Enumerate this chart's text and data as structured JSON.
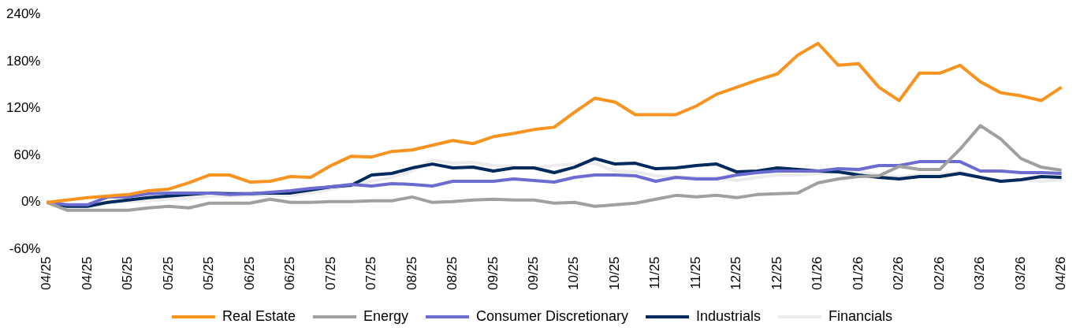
{
  "chart_data": {
    "type": "line",
    "categories": [
      "04/25",
      null,
      "04/25",
      null,
      "05/25",
      null,
      "05/25",
      null,
      "05/25",
      null,
      "06/25",
      null,
      "06/25",
      null,
      "07/25",
      null,
      "07/25",
      null,
      "08/25",
      null,
      "08/25",
      null,
      "09/25",
      null,
      "09/25",
      null,
      "10/25",
      null,
      "10/25",
      null,
      "11/25",
      null,
      "11/25",
      null,
      "12/25",
      null,
      "12/25",
      null,
      "01/26",
      null,
      "01/26",
      null,
      "02/26",
      null,
      "02/26",
      null,
      "03/26",
      null,
      "03/26",
      null,
      "04/26"
    ],
    "series": [
      {
        "name": "Real Estate",
        "color": "#f7931e",
        "values": [
          0,
          3,
          6,
          8,
          10,
          15,
          17,
          25,
          35,
          35,
          26,
          27,
          33,
          32,
          47,
          59,
          58,
          65,
          67,
          73,
          79,
          75,
          84,
          88,
          93,
          96,
          115,
          133,
          128,
          112,
          112,
          112,
          123,
          138,
          147,
          156,
          164,
          188,
          203,
          175,
          177,
          147,
          130,
          165,
          165,
          175,
          154,
          140,
          136,
          130,
          147
        ]
      },
      {
        "name": "Energy",
        "color": "#a0a0a0",
        "values": [
          0,
          -10,
          -10,
          -10,
          -10,
          -7,
          -5,
          -7,
          -1,
          -1,
          -1,
          4,
          0,
          0,
          1,
          1,
          2,
          2,
          7,
          0,
          1,
          3,
          4,
          3,
          3,
          -1,
          0,
          -5,
          -3,
          -1,
          4,
          9,
          7,
          9,
          6,
          10,
          11,
          12,
          25,
          30,
          33,
          34,
          46,
          42,
          42,
          68,
          98,
          81,
          56,
          45,
          41
        ]
      },
      {
        "name": "Consumer Discretionary",
        "color": "#6b6bd0",
        "values": [
          0,
          -3,
          -3,
          7,
          7,
          11,
          12,
          12,
          12,
          10,
          11,
          13,
          15,
          18,
          20,
          23,
          21,
          24,
          23,
          21,
          27,
          27,
          27,
          30,
          28,
          26,
          32,
          35,
          35,
          34,
          27,
          32,
          30,
          30,
          35,
          38,
          40,
          40,
          40,
          43,
          42,
          47,
          47,
          52,
          52,
          52,
          40,
          40,
          38,
          38,
          37
        ]
      },
      {
        "name": "Industrials",
        "color": "#002a5c",
        "values": [
          0,
          -5,
          -5,
          0,
          3,
          6,
          8,
          10,
          12,
          11,
          11,
          12,
          12,
          16,
          20,
          22,
          35,
          37,
          44,
          49,
          44,
          45,
          40,
          44,
          44,
          38,
          45,
          56,
          49,
          50,
          43,
          44,
          47,
          49,
          39,
          40,
          44,
          42,
          40,
          39,
          35,
          32,
          30,
          33,
          33,
          37,
          32,
          27,
          29,
          33,
          32
        ]
      },
      {
        "name": "Financials",
        "color": "#ececec",
        "values": [
          0,
          -5,
          -3,
          0,
          1,
          2,
          4,
          5,
          8,
          8,
          9,
          9,
          9,
          12,
          17,
          22,
          27,
          32,
          40,
          54,
          50,
          51,
          47,
          46,
          44,
          47,
          49,
          50,
          40,
          39,
          34,
          32,
          32,
          32,
          28,
          32,
          35,
          35,
          37,
          39,
          40,
          35,
          33,
          35,
          36,
          39,
          32,
          27,
          29,
          27,
          29
        ]
      }
    ],
    "ylim": [
      -60,
      240
    ],
    "yticks": [
      {
        "value": -60,
        "label": "-60%"
      },
      {
        "value": 0,
        "label": "0%"
      },
      {
        "value": 60,
        "label": "60%"
      },
      {
        "value": 120,
        "label": "120%"
      },
      {
        "value": 180,
        "label": "180%"
      },
      {
        "value": 240,
        "label": "240%"
      }
    ],
    "grid": false,
    "legend": "bottom",
    "marker": "none",
    "line_style": "solid"
  }
}
